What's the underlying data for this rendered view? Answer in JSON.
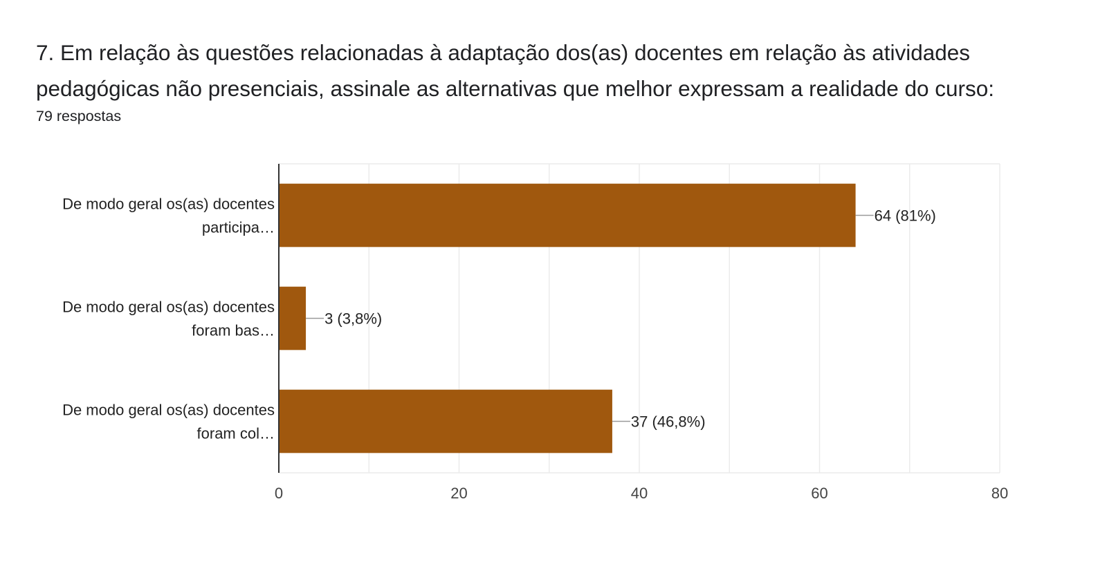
{
  "question": {
    "title": "7. Em relação às questões relacionadas à adaptação dos(as) docentes em relação às atividades pedagógicas não presenciais, assinale as alternativas que melhor expressam a realidade do curso:",
    "responses": "79 respostas"
  },
  "chart_data": {
    "type": "bar",
    "orientation": "horizontal",
    "categories": [
      [
        "De modo geral os(as) docentes",
        "participa…"
      ],
      [
        "De modo geral os(as) docentes",
        "foram bas…"
      ],
      [
        "De modo geral os(as) docentes",
        "foram col…"
      ]
    ],
    "values": [
      64,
      3,
      37
    ],
    "data_labels": [
      "64 (81%)",
      "3 (3,8%)",
      "37 (46,8%)"
    ],
    "xlim": [
      0,
      80
    ],
    "x_ticks": [
      0,
      20,
      40,
      60,
      80
    ],
    "grid": true,
    "bar_color": "#a0580e"
  }
}
